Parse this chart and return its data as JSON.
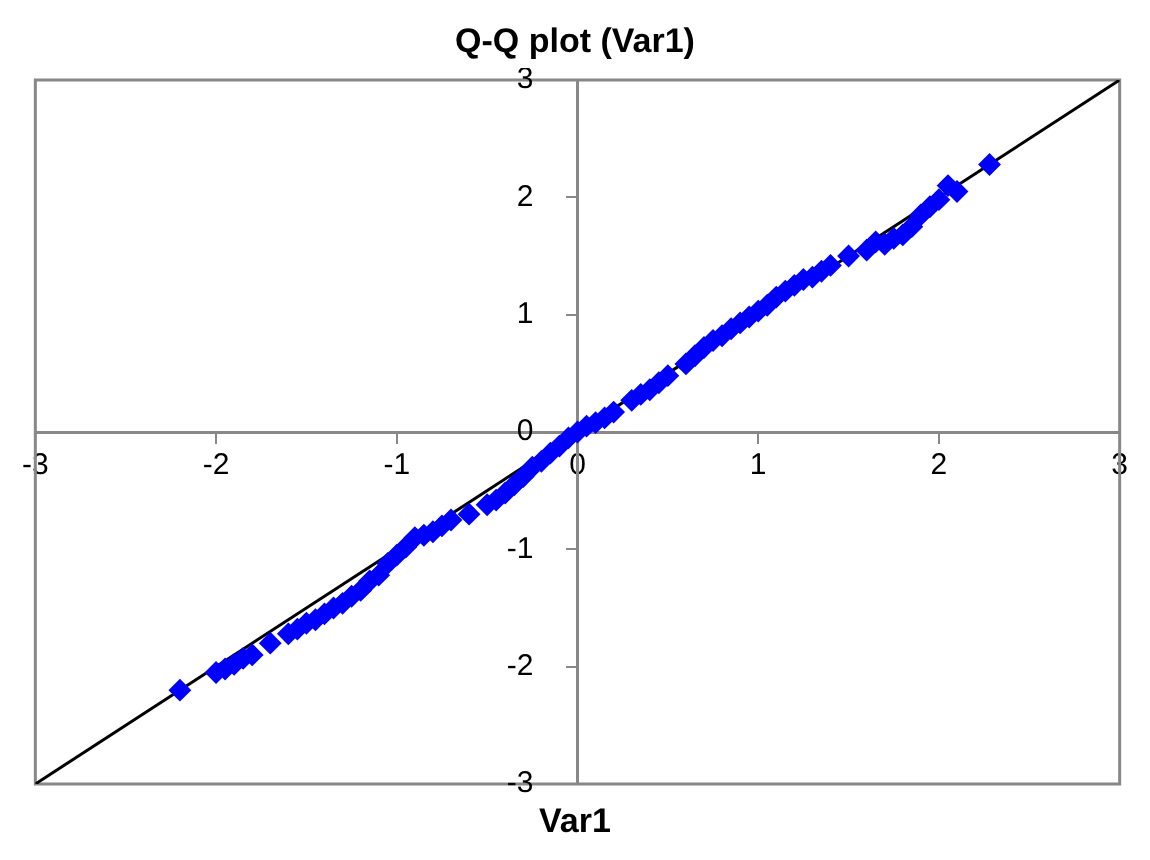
{
  "chart_data": {
    "type": "scatter",
    "title": "Q-Q plot (Var1)",
    "xlabel": "Var1",
    "marker": "diamond",
    "grid": false,
    "legend": false,
    "xlim": [
      -3,
      3
    ],
    "ylim": [
      -3,
      3
    ],
    "xticks": [
      -3,
      -2,
      -1,
      0,
      1,
      2,
      3
    ],
    "yticks": [
      -3,
      -2,
      -1,
      0,
      1,
      2,
      3
    ],
    "series": [
      {
        "color": "#0000ff",
        "x": [
          -2.2,
          -2.0,
          -1.95,
          -1.9,
          -1.85,
          -1.8,
          -1.7,
          -1.6,
          -1.55,
          -1.5,
          -1.45,
          -1.4,
          -1.35,
          -1.3,
          -1.25,
          -1.2,
          -1.15,
          -1.1,
          -1.05,
          -1.0,
          -0.95,
          -0.9,
          -0.85,
          -0.8,
          -0.75,
          -0.7,
          -0.6,
          -0.5,
          -0.45,
          -0.4,
          -0.35,
          -0.3,
          -0.25,
          -0.2,
          -0.15,
          -0.1,
          -0.05,
          0,
          0.05,
          0.1,
          0.15,
          0.2,
          0.3,
          0.35,
          0.4,
          0.45,
          0.5,
          0.6,
          0.65,
          0.7,
          0.75,
          0.8,
          0.85,
          0.9,
          0.95,
          1.0,
          1.05,
          1.1,
          1.15,
          1.2,
          1.25,
          1.3,
          1.35,
          1.4,
          1.5,
          1.6,
          1.65,
          1.7,
          1.75,
          1.8,
          1.85,
          1.9,
          1.95,
          2.0,
          2.05,
          2.1,
          2.28
        ],
        "values": [
          -2.2,
          -2.05,
          -2.02,
          -1.98,
          -1.93,
          -1.9,
          -1.8,
          -1.72,
          -1.68,
          -1.63,
          -1.6,
          -1.55,
          -1.5,
          -1.46,
          -1.4,
          -1.35,
          -1.27,
          -1.22,
          -1.12,
          -1.05,
          -0.98,
          -0.9,
          -0.88,
          -0.85,
          -0.8,
          -0.75,
          -0.7,
          -0.62,
          -0.58,
          -0.52,
          -0.45,
          -0.38,
          -0.3,
          -0.25,
          -0.18,
          -0.12,
          -0.05,
          0,
          0.05,
          0.08,
          0.12,
          0.17,
          0.27,
          0.32,
          0.36,
          0.42,
          0.48,
          0.58,
          0.65,
          0.72,
          0.78,
          0.82,
          0.88,
          0.93,
          0.98,
          1.03,
          1.08,
          1.15,
          1.2,
          1.25,
          1.3,
          1.32,
          1.37,
          1.42,
          1.5,
          1.55,
          1.62,
          1.6,
          1.65,
          1.68,
          1.75,
          1.85,
          1.92,
          1.98,
          2.1,
          2.05,
          2.28
        ]
      },
      {
        "type": "line",
        "color": "#000000",
        "x": [
          -3,
          3
        ],
        "values": [
          -3,
          3
        ],
        "marker": "none"
      }
    ]
  }
}
